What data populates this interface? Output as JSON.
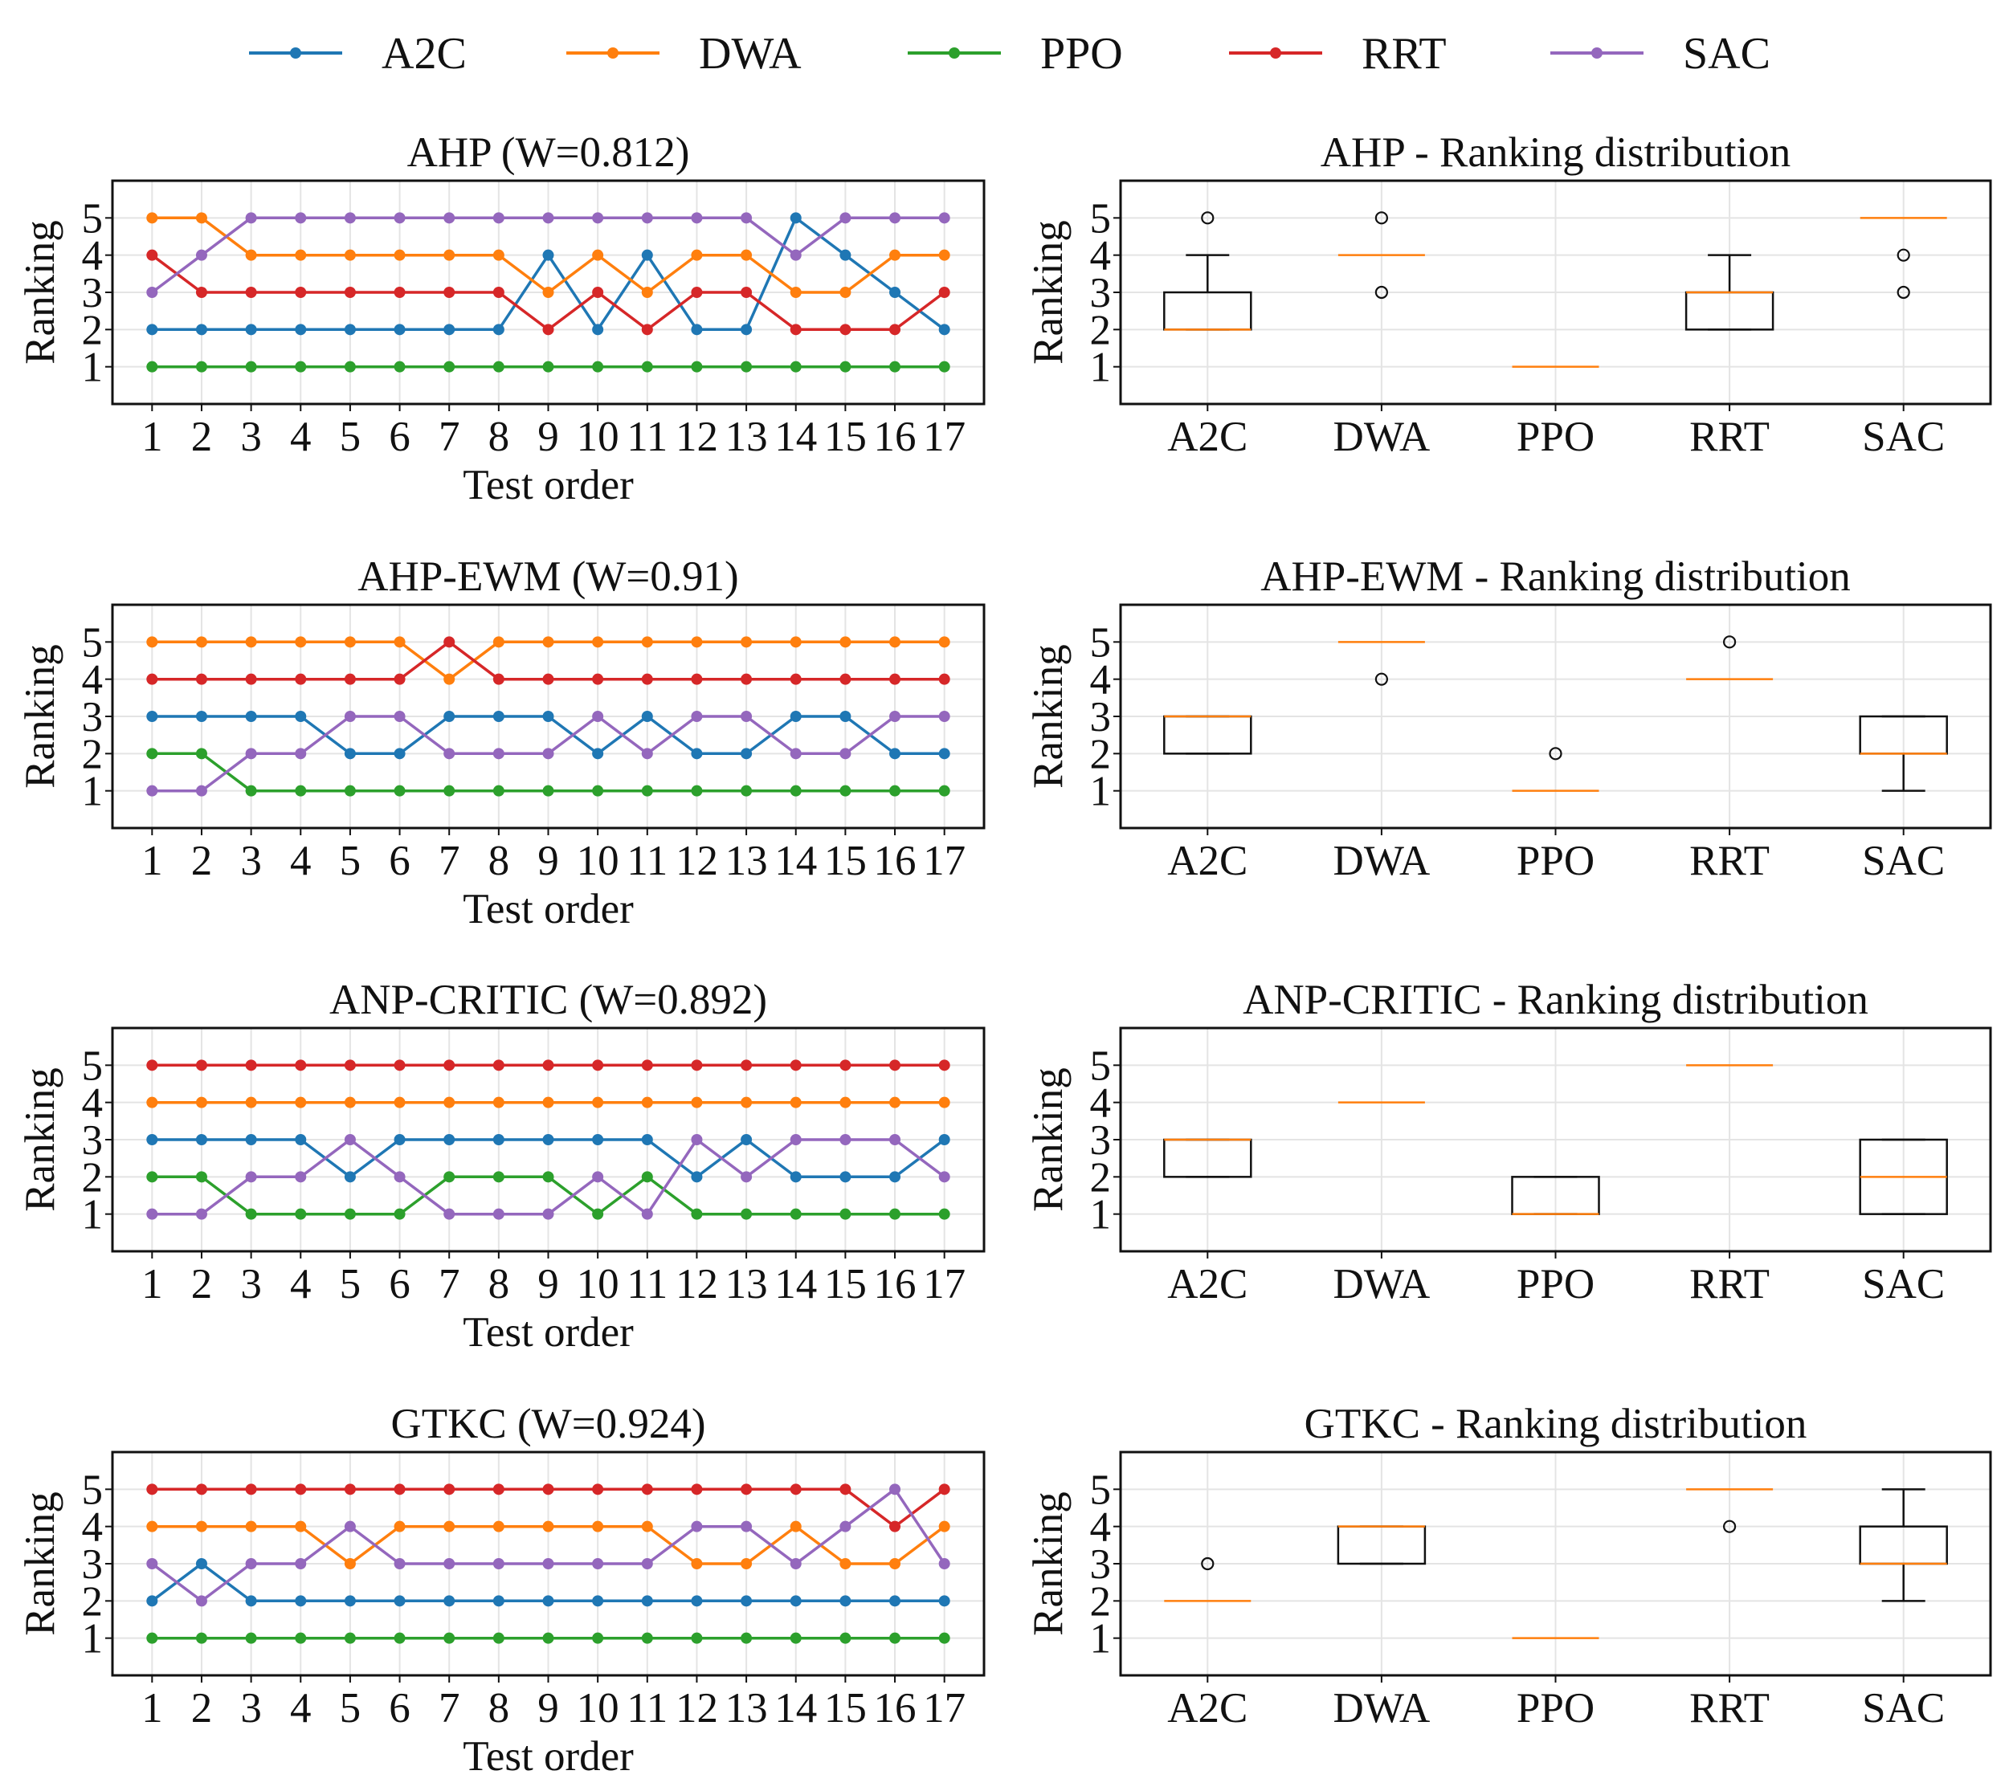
{
  "legend": {
    "entries": [
      {
        "name": "A2C",
        "color": "#1f77b4"
      },
      {
        "name": "DWA",
        "color": "#ff7f0e"
      },
      {
        "name": "PPO",
        "color": "#2ca02c"
      },
      {
        "name": "RRT",
        "color": "#d62728"
      },
      {
        "name": "SAC",
        "color": "#9467bd"
      }
    ]
  },
  "chart_data": [
    {
      "type": "line",
      "title": "AHP (W=0.812)",
      "xlabel": "Test order",
      "ylabel": "Ranking",
      "x": [
        1,
        2,
        3,
        4,
        5,
        6,
        7,
        8,
        9,
        10,
        11,
        12,
        13,
        14,
        15,
        16,
        17
      ],
      "yticks": [
        1,
        2,
        3,
        4,
        5
      ],
      "ylim": [
        0,
        6
      ],
      "grid": true,
      "series": [
        {
          "name": "A2C",
          "values": [
            2,
            2,
            2,
            2,
            2,
            2,
            2,
            2,
            4,
            2,
            4,
            2,
            2,
            5,
            4,
            3,
            2
          ]
        },
        {
          "name": "DWA",
          "values": [
            5,
            5,
            4,
            4,
            4,
            4,
            4,
            4,
            3,
            4,
            3,
            4,
            4,
            3,
            3,
            4,
            4
          ]
        },
        {
          "name": "PPO",
          "values": [
            1,
            1,
            1,
            1,
            1,
            1,
            1,
            1,
            1,
            1,
            1,
            1,
            1,
            1,
            1,
            1,
            1
          ]
        },
        {
          "name": "RRT",
          "values": [
            4,
            3,
            3,
            3,
            3,
            3,
            3,
            3,
            2,
            3,
            2,
            3,
            3,
            2,
            2,
            2,
            3
          ]
        },
        {
          "name": "SAC",
          "values": [
            3,
            4,
            5,
            5,
            5,
            5,
            5,
            5,
            5,
            5,
            5,
            5,
            5,
            4,
            5,
            5,
            5
          ]
        }
      ]
    },
    {
      "type": "box",
      "title": "AHP - Ranking distribution",
      "ylabel": "Ranking",
      "categories": [
        "A2C",
        "DWA",
        "PPO",
        "RRT",
        "SAC"
      ],
      "yticks": [
        1,
        2,
        3,
        4,
        5
      ],
      "ylim": [
        0,
        6
      ],
      "grid": true,
      "boxes": [
        {
          "q1": 2,
          "median": 2,
          "q3": 3,
          "whislo": 2,
          "whishi": 4,
          "fliers": [
            5
          ]
        },
        {
          "q1": 4,
          "median": 4,
          "q3": 4,
          "whislo": 4,
          "whishi": 4,
          "fliers": [
            5,
            3
          ]
        },
        {
          "q1": 1,
          "median": 1,
          "q3": 1,
          "whislo": 1,
          "whishi": 1,
          "fliers": []
        },
        {
          "q1": 2,
          "median": 3,
          "q3": 3,
          "whislo": 2,
          "whishi": 4,
          "fliers": []
        },
        {
          "q1": 5,
          "median": 5,
          "q3": 5,
          "whislo": 5,
          "whishi": 5,
          "fliers": [
            4,
            3
          ]
        }
      ]
    },
    {
      "type": "line",
      "title": "AHP-EWM (W=0.91)",
      "xlabel": "Test order",
      "ylabel": "Ranking",
      "x": [
        1,
        2,
        3,
        4,
        5,
        6,
        7,
        8,
        9,
        10,
        11,
        12,
        13,
        14,
        15,
        16,
        17
      ],
      "yticks": [
        1,
        2,
        3,
        4,
        5
      ],
      "ylim": [
        0,
        6
      ],
      "grid": true,
      "series": [
        {
          "name": "A2C",
          "values": [
            3,
            3,
            3,
            3,
            2,
            2,
            3,
            3,
            3,
            2,
            3,
            2,
            2,
            3,
            3,
            2,
            2
          ]
        },
        {
          "name": "DWA",
          "values": [
            5,
            5,
            5,
            5,
            5,
            5,
            4,
            5,
            5,
            5,
            5,
            5,
            5,
            5,
            5,
            5,
            5
          ]
        },
        {
          "name": "PPO",
          "values": [
            2,
            2,
            1,
            1,
            1,
            1,
            1,
            1,
            1,
            1,
            1,
            1,
            1,
            1,
            1,
            1,
            1
          ]
        },
        {
          "name": "RRT",
          "values": [
            4,
            4,
            4,
            4,
            4,
            4,
            5,
            4,
            4,
            4,
            4,
            4,
            4,
            4,
            4,
            4,
            4
          ]
        },
        {
          "name": "SAC",
          "values": [
            1,
            1,
            2,
            2,
            3,
            3,
            2,
            2,
            2,
            3,
            2,
            3,
            3,
            2,
            2,
            3,
            3
          ]
        }
      ]
    },
    {
      "type": "box",
      "title": "AHP-EWM - Ranking distribution",
      "ylabel": "Ranking",
      "categories": [
        "A2C",
        "DWA",
        "PPO",
        "RRT",
        "SAC"
      ],
      "yticks": [
        1,
        2,
        3,
        4,
        5
      ],
      "ylim": [
        0,
        6
      ],
      "grid": true,
      "boxes": [
        {
          "q1": 2,
          "median": 3,
          "q3": 3,
          "whislo": 2,
          "whishi": 3,
          "fliers": []
        },
        {
          "q1": 5,
          "median": 5,
          "q3": 5,
          "whislo": 5,
          "whishi": 5,
          "fliers": [
            4
          ]
        },
        {
          "q1": 1,
          "median": 1,
          "q3": 1,
          "whislo": 1,
          "whishi": 1,
          "fliers": [
            2
          ]
        },
        {
          "q1": 4,
          "median": 4,
          "q3": 4,
          "whislo": 4,
          "whishi": 4,
          "fliers": [
            5
          ]
        },
        {
          "q1": 2,
          "median": 2,
          "q3": 3,
          "whislo": 1,
          "whishi": 3,
          "fliers": []
        }
      ]
    },
    {
      "type": "line",
      "title": "ANP-CRITIC (W=0.892)",
      "xlabel": "Test order",
      "ylabel": "Ranking",
      "x": [
        1,
        2,
        3,
        4,
        5,
        6,
        7,
        8,
        9,
        10,
        11,
        12,
        13,
        14,
        15,
        16,
        17
      ],
      "yticks": [
        1,
        2,
        3,
        4,
        5
      ],
      "ylim": [
        0,
        6
      ],
      "grid": true,
      "series": [
        {
          "name": "A2C",
          "values": [
            3,
            3,
            3,
            3,
            2,
            3,
            3,
            3,
            3,
            3,
            3,
            2,
            3,
            2,
            2,
            2,
            3
          ]
        },
        {
          "name": "DWA",
          "values": [
            4,
            4,
            4,
            4,
            4,
            4,
            4,
            4,
            4,
            4,
            4,
            4,
            4,
            4,
            4,
            4,
            4
          ]
        },
        {
          "name": "PPO",
          "values": [
            2,
            2,
            1,
            1,
            1,
            1,
            2,
            2,
            2,
            1,
            2,
            1,
            1,
            1,
            1,
            1,
            1
          ]
        },
        {
          "name": "RRT",
          "values": [
            5,
            5,
            5,
            5,
            5,
            5,
            5,
            5,
            5,
            5,
            5,
            5,
            5,
            5,
            5,
            5,
            5
          ]
        },
        {
          "name": "SAC",
          "values": [
            1,
            1,
            2,
            2,
            3,
            2,
            1,
            1,
            1,
            2,
            1,
            3,
            2,
            3,
            3,
            3,
            2
          ]
        }
      ]
    },
    {
      "type": "box",
      "title": "ANP-CRITIC - Ranking distribution",
      "ylabel": "Ranking",
      "categories": [
        "A2C",
        "DWA",
        "PPO",
        "RRT",
        "SAC"
      ],
      "yticks": [
        1,
        2,
        3,
        4,
        5
      ],
      "ylim": [
        0,
        6
      ],
      "grid": true,
      "boxes": [
        {
          "q1": 2,
          "median": 3,
          "q3": 3,
          "whislo": 2,
          "whishi": 3,
          "fliers": []
        },
        {
          "q1": 4,
          "median": 4,
          "q3": 4,
          "whislo": 4,
          "whishi": 4,
          "fliers": []
        },
        {
          "q1": 1,
          "median": 1,
          "q3": 2,
          "whislo": 1,
          "whishi": 2,
          "fliers": []
        },
        {
          "q1": 5,
          "median": 5,
          "q3": 5,
          "whislo": 5,
          "whishi": 5,
          "fliers": []
        },
        {
          "q1": 1,
          "median": 2,
          "q3": 3,
          "whislo": 1,
          "whishi": 3,
          "fliers": []
        }
      ]
    },
    {
      "type": "line",
      "title": "GTKC (W=0.924)",
      "xlabel": "Test order",
      "ylabel": "Ranking",
      "x": [
        1,
        2,
        3,
        4,
        5,
        6,
        7,
        8,
        9,
        10,
        11,
        12,
        13,
        14,
        15,
        16,
        17
      ],
      "yticks": [
        1,
        2,
        3,
        4,
        5
      ],
      "ylim": [
        0,
        6
      ],
      "grid": true,
      "series": [
        {
          "name": "A2C",
          "values": [
            2,
            3,
            2,
            2,
            2,
            2,
            2,
            2,
            2,
            2,
            2,
            2,
            2,
            2,
            2,
            2,
            2
          ]
        },
        {
          "name": "DWA",
          "values": [
            4,
            4,
            4,
            4,
            3,
            4,
            4,
            4,
            4,
            4,
            4,
            3,
            3,
            4,
            3,
            3,
            4
          ]
        },
        {
          "name": "PPO",
          "values": [
            1,
            1,
            1,
            1,
            1,
            1,
            1,
            1,
            1,
            1,
            1,
            1,
            1,
            1,
            1,
            1,
            1
          ]
        },
        {
          "name": "RRT",
          "values": [
            5,
            5,
            5,
            5,
            5,
            5,
            5,
            5,
            5,
            5,
            5,
            5,
            5,
            5,
            5,
            4,
            5
          ]
        },
        {
          "name": "SAC",
          "values": [
            3,
            2,
            3,
            3,
            4,
            3,
            3,
            3,
            3,
            3,
            3,
            4,
            4,
            3,
            4,
            5,
            3
          ]
        }
      ]
    },
    {
      "type": "box",
      "title": "GTKC - Ranking distribution",
      "ylabel": "Ranking",
      "categories": [
        "A2C",
        "DWA",
        "PPO",
        "RRT",
        "SAC"
      ],
      "yticks": [
        1,
        2,
        3,
        4,
        5
      ],
      "ylim": [
        0,
        6
      ],
      "grid": true,
      "boxes": [
        {
          "q1": 2,
          "median": 2,
          "q3": 2,
          "whislo": 2,
          "whishi": 2,
          "fliers": [
            3
          ]
        },
        {
          "q1": 3,
          "median": 4,
          "q3": 4,
          "whislo": 3,
          "whishi": 4,
          "fliers": []
        },
        {
          "q1": 1,
          "median": 1,
          "q3": 1,
          "whislo": 1,
          "whishi": 1,
          "fliers": []
        },
        {
          "q1": 5,
          "median": 5,
          "q3": 5,
          "whislo": 5,
          "whishi": 5,
          "fliers": [
            4
          ]
        },
        {
          "q1": 3,
          "median": 3,
          "q3": 4,
          "whislo": 2,
          "whishi": 5,
          "fliers": []
        }
      ]
    }
  ]
}
